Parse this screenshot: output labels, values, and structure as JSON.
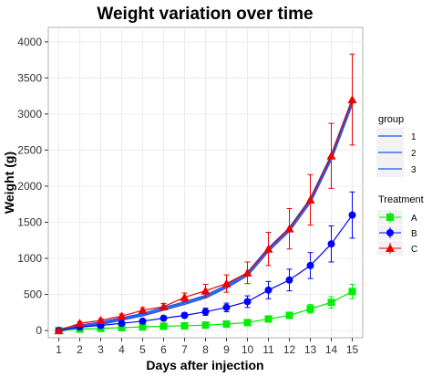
{
  "chart_data": {
    "type": "line",
    "title": "Weight variation over time",
    "xlabel": "Days after injection",
    "ylabel": "Weight (g)",
    "x": [
      1,
      2,
      3,
      4,
      5,
      6,
      7,
      8,
      9,
      10,
      11,
      12,
      13,
      14,
      15
    ],
    "xlim": [
      0.5,
      15.5
    ],
    "ylim": [
      -100,
      4200
    ],
    "yticks": [
      0,
      500,
      1000,
      1500,
      2000,
      2500,
      3000,
      3500,
      4000
    ],
    "grid": true,
    "series": [
      {
        "name": "A",
        "marker": "square",
        "color": "#00ee00",
        "values": [
          0,
          20,
          30,
          40,
          50,
          60,
          65,
          75,
          90,
          110,
          160,
          210,
          300,
          390,
          540
        ],
        "errors": [
          10,
          10,
          10,
          10,
          10,
          15,
          15,
          20,
          25,
          30,
          35,
          45,
          60,
          80,
          100
        ]
      },
      {
        "name": "B",
        "marker": "circle",
        "color": "#0000ff",
        "values": [
          0,
          50,
          70,
          100,
          130,
          170,
          210,
          260,
          320,
          400,
          560,
          700,
          900,
          1200,
          1600
        ],
        "errors": [
          10,
          15,
          20,
          25,
          25,
          30,
          35,
          50,
          60,
          80,
          120,
          150,
          180,
          250,
          320
        ]
      },
      {
        "name": "C",
        "marker": "triangle",
        "color": "#ee0000",
        "values": [
          0,
          100,
          140,
          200,
          280,
          330,
          460,
          550,
          650,
          800,
          1130,
          1410,
          1810,
          2420,
          3200
        ],
        "errors": [
          10,
          20,
          25,
          30,
          35,
          45,
          60,
          90,
          120,
          150,
          230,
          280,
          350,
          450,
          630
        ]
      }
    ],
    "fit_lines": {
      "color": "#1a55e8",
      "values": [
        0,
        60,
        100,
        160,
        220,
        300,
        380,
        470,
        610,
        780,
        1120,
        1400,
        1800,
        2400,
        3170
      ]
    },
    "legends": [
      {
        "title": "group",
        "labels": [
          "1",
          "2",
          "3"
        ]
      },
      {
        "title": "Treatment",
        "labels": [
          "A",
          "B",
          "C"
        ]
      }
    ]
  }
}
